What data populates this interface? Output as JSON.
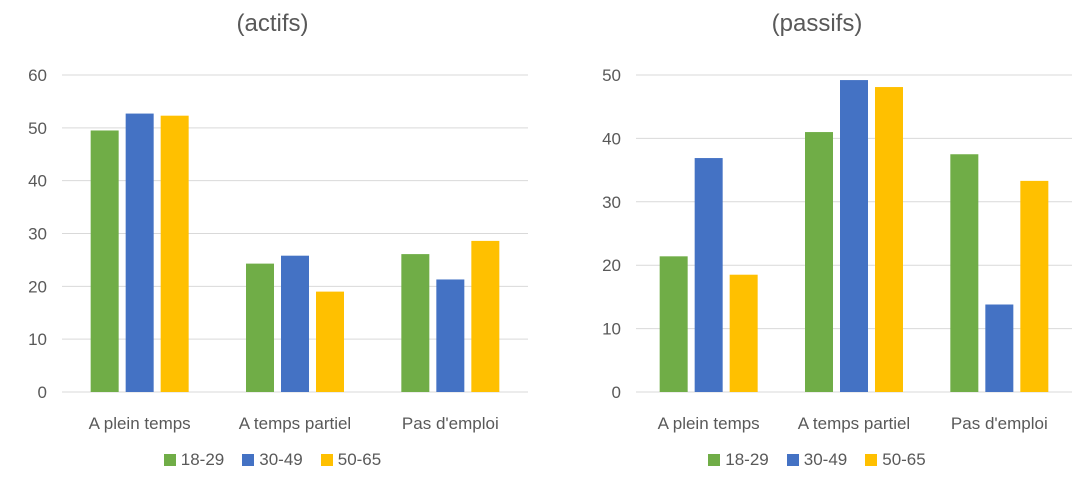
{
  "chart_data": [
    {
      "type": "bar",
      "title": "(actifs)",
      "categories": [
        "A plein temps",
        "A temps partiel",
        "Pas d'emploi"
      ],
      "series": [
        {
          "name": "18-29",
          "color": "#70AD47",
          "values": [
            49.5,
            24.3,
            26.1
          ]
        },
        {
          "name": "30-49",
          "color": "#4472C4",
          "values": [
            52.7,
            25.8,
            21.3
          ]
        },
        {
          "name": "50-65",
          "color": "#FFC000",
          "values": [
            52.3,
            19.0,
            28.6
          ]
        }
      ],
      "ylim": [
        0,
        60
      ],
      "yticks": [
        0,
        10,
        20,
        30,
        40,
        50,
        60
      ],
      "grid": true,
      "legend": "bottom"
    },
    {
      "type": "bar",
      "title": "(passifs)",
      "categories": [
        "A plein temps",
        "A temps partiel",
        "Pas d'emploi"
      ],
      "series": [
        {
          "name": "18-29",
          "color": "#70AD47",
          "values": [
            21.4,
            41.0,
            37.5
          ]
        },
        {
          "name": "30-49",
          "color": "#4472C4",
          "values": [
            36.9,
            49.2,
            13.8
          ]
        },
        {
          "name": "50-65",
          "color": "#FFC000",
          "values": [
            18.5,
            48.1,
            33.3
          ]
        }
      ],
      "ylim": [
        0,
        50
      ],
      "yticks": [
        0,
        10,
        20,
        30,
        40,
        50
      ],
      "grid": true,
      "legend": "bottom"
    }
  ]
}
